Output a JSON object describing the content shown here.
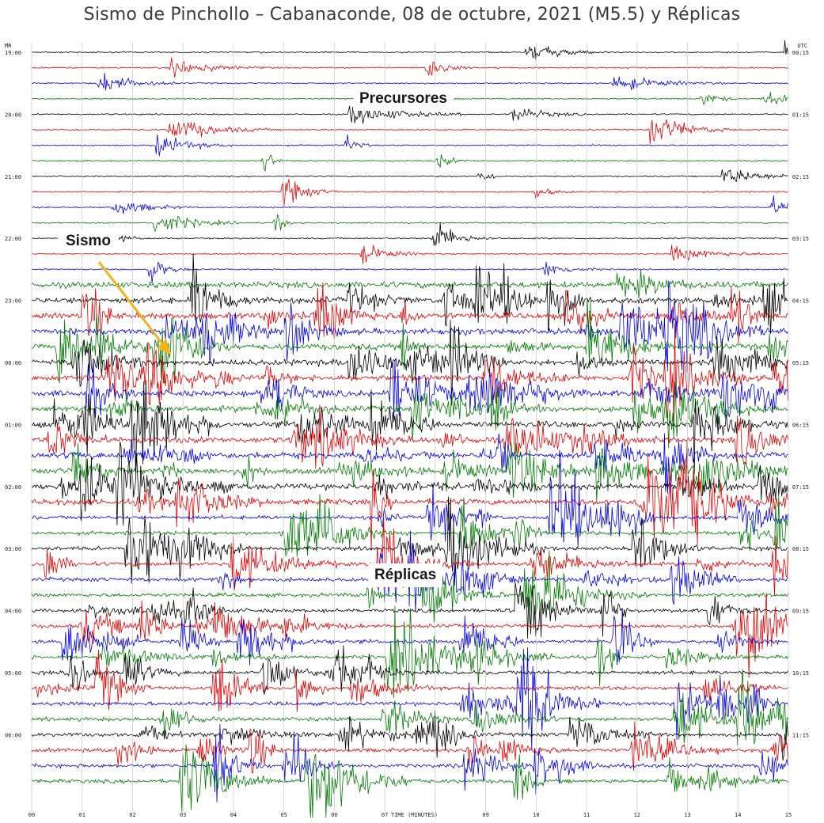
{
  "title": "Sismo de Pinchollo – Cabanaconde, 08 de octubre, 2021 (M5.5) y Réplicas",
  "annotations": {
    "precursores": "Precursores",
    "sismo": "Sismo",
    "replicas": "Réplicas"
  },
  "seismogram": {
    "left_header": "MR",
    "right_header": "UTC",
    "left_time_labels": [
      "19:00",
      "20:00",
      "21:00",
      "22:00",
      "23:00",
      "00:00",
      "01:00",
      "02:00",
      "03:00",
      "04:00",
      "05:00",
      "06:00"
    ],
    "right_time_labels": [
      "00:15",
      "01:15",
      "02:15",
      "03:15",
      "04:15",
      "05:15",
      "06:15",
      "07:15",
      "08:15",
      "09:15",
      "10:15",
      "11:15"
    ],
    "minute_ticks": [
      "00",
      "01",
      "02",
      "03",
      "04",
      "05",
      "06",
      "07",
      "08",
      "09",
      "10",
      "11",
      "12",
      "13",
      "14",
      "15"
    ],
    "x_axis_title": "TIME (MINUTES)",
    "trace_colors": [
      "#000000",
      "#e00000",
      "#0000e0",
      "#007a00"
    ],
    "arrow_color": "#f2b21c"
  }
}
